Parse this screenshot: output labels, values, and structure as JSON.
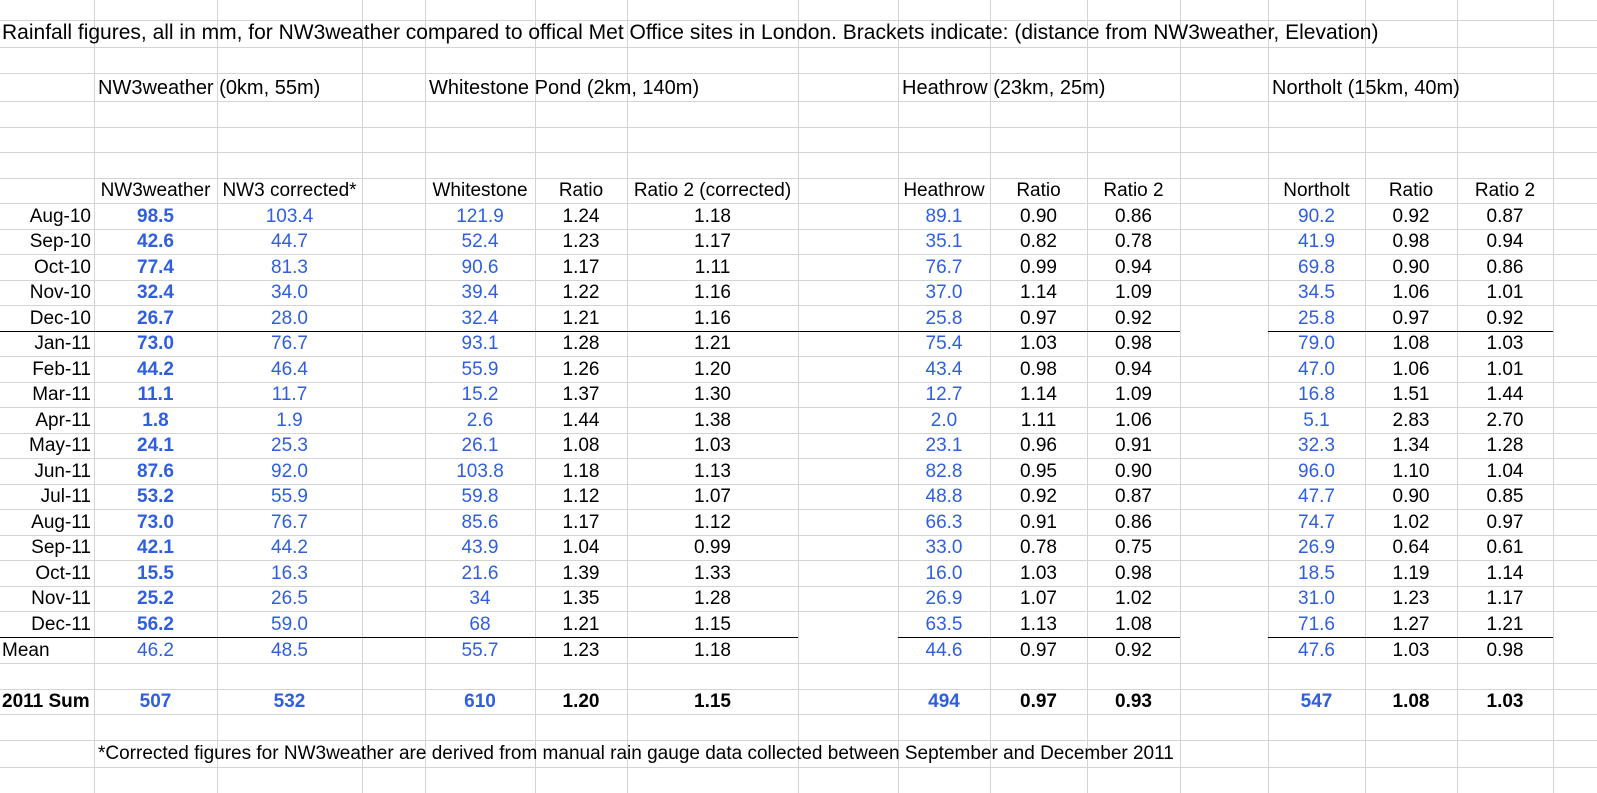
{
  "title": "Rainfall figures, all in mm, for NW3weather compared to offical Met Office sites in London. Brackets indicate: (distance from NW3weather, Elevation)",
  "sections": {
    "nw3": "NW3weather (0km, 55m)",
    "whitestone": "Whitestone Pond (2km, 140m)",
    "heathrow": "Heathrow (23km, 25m)",
    "northolt": "Northolt (15km, 40m)"
  },
  "headers": {
    "nw3": "NW3weather",
    "nw3c": "NW3 corrected*",
    "ws": "Whitestone",
    "ws_r1": "Ratio",
    "ws_r2": "Ratio 2 (corrected)",
    "hr": "Heathrow",
    "hr_r1": "Ratio",
    "hr_r2": "Ratio 2",
    "no": "Northolt",
    "no_r1": "Ratio",
    "no_r2": "Ratio 2"
  },
  "rows": [
    {
      "label": "Aug-10",
      "nw3": "98.5",
      "nw3c": "103.4",
      "ws": "121.9",
      "ws_r1": "1.24",
      "ws_r2": "1.18",
      "hr": "89.1",
      "hr_r1": "0.90",
      "hr_r2": "0.86",
      "no": "90.2",
      "no_r1": "0.92",
      "no_r2": "0.87"
    },
    {
      "label": "Sep-10",
      "nw3": "42.6",
      "nw3c": "44.7",
      "ws": "52.4",
      "ws_r1": "1.23",
      "ws_r2": "1.17",
      "hr": "35.1",
      "hr_r1": "0.82",
      "hr_r2": "0.78",
      "no": "41.9",
      "no_r1": "0.98",
      "no_r2": "0.94"
    },
    {
      "label": "Oct-10",
      "nw3": "77.4",
      "nw3c": "81.3",
      "ws": "90.6",
      "ws_r1": "1.17",
      "ws_r2": "1.11",
      "hr": "76.7",
      "hr_r1": "0.99",
      "hr_r2": "0.94",
      "no": "69.8",
      "no_r1": "0.90",
      "no_r2": "0.86"
    },
    {
      "label": "Nov-10",
      "nw3": "32.4",
      "nw3c": "34.0",
      "ws": "39.4",
      "ws_r1": "1.22",
      "ws_r2": "1.16",
      "hr": "37.0",
      "hr_r1": "1.14",
      "hr_r2": "1.09",
      "no": "34.5",
      "no_r1": "1.06",
      "no_r2": "1.01"
    },
    {
      "label": "Dec-10",
      "nw3": "26.7",
      "nw3c": "28.0",
      "ws": "32.4",
      "ws_r1": "1.21",
      "ws_r2": "1.16",
      "hr": "25.8",
      "hr_r1": "0.97",
      "hr_r2": "0.92",
      "no": "25.8",
      "no_r1": "0.97",
      "no_r2": "0.92"
    },
    {
      "label": "Jan-11",
      "nw3": "73.0",
      "nw3c": "76.7",
      "ws": "93.1",
      "ws_r1": "1.28",
      "ws_r2": "1.21",
      "hr": "75.4",
      "hr_r1": "1.03",
      "hr_r2": "0.98",
      "no": "79.0",
      "no_r1": "1.08",
      "no_r2": "1.03"
    },
    {
      "label": "Feb-11",
      "nw3": "44.2",
      "nw3c": "46.4",
      "ws": "55.9",
      "ws_r1": "1.26",
      "ws_r2": "1.20",
      "hr": "43.4",
      "hr_r1": "0.98",
      "hr_r2": "0.94",
      "no": "47.0",
      "no_r1": "1.06",
      "no_r2": "1.01"
    },
    {
      "label": "Mar-11",
      "nw3": "11.1",
      "nw3c": "11.7",
      "ws": "15.2",
      "ws_r1": "1.37",
      "ws_r2": "1.30",
      "hr": "12.7",
      "hr_r1": "1.14",
      "hr_r2": "1.09",
      "no": "16.8",
      "no_r1": "1.51",
      "no_r2": "1.44"
    },
    {
      "label": "Apr-11",
      "nw3": "1.8",
      "nw3c": "1.9",
      "ws": "2.6",
      "ws_r1": "1.44",
      "ws_r2": "1.38",
      "hr": "2.0",
      "hr_r1": "1.11",
      "hr_r2": "1.06",
      "no": "5.1",
      "no_r1": "2.83",
      "no_r2": "2.70"
    },
    {
      "label": "May-11",
      "nw3": "24.1",
      "nw3c": "25.3",
      "ws": "26.1",
      "ws_r1": "1.08",
      "ws_r2": "1.03",
      "hr": "23.1",
      "hr_r1": "0.96",
      "hr_r2": "0.91",
      "no": "32.3",
      "no_r1": "1.34",
      "no_r2": "1.28"
    },
    {
      "label": "Jun-11",
      "nw3": "87.6",
      "nw3c": "92.0",
      "ws": "103.8",
      "ws_r1": "1.18",
      "ws_r2": "1.13",
      "hr": "82.8",
      "hr_r1": "0.95",
      "hr_r2": "0.90",
      "no": "96.0",
      "no_r1": "1.10",
      "no_r2": "1.04"
    },
    {
      "label": "Jul-11",
      "nw3": "53.2",
      "nw3c": "55.9",
      "ws": "59.8",
      "ws_r1": "1.12",
      "ws_r2": "1.07",
      "hr": "48.8",
      "hr_r1": "0.92",
      "hr_r2": "0.87",
      "no": "47.7",
      "no_r1": "0.90",
      "no_r2": "0.85"
    },
    {
      "label": "Aug-11",
      "nw3": "73.0",
      "nw3c": "76.7",
      "ws": "85.6",
      "ws_r1": "1.17",
      "ws_r2": "1.12",
      "hr": "66.3",
      "hr_r1": "0.91",
      "hr_r2": "0.86",
      "no": "74.7",
      "no_r1": "1.02",
      "no_r2": "0.97"
    },
    {
      "label": "Sep-11",
      "nw3": "42.1",
      "nw3c": "44.2",
      "ws": "43.9",
      "ws_r1": "1.04",
      "ws_r2": "0.99",
      "hr": "33.0",
      "hr_r1": "0.78",
      "hr_r2": "0.75",
      "no": "26.9",
      "no_r1": "0.64",
      "no_r2": "0.61"
    },
    {
      "label": "Oct-11",
      "nw3": "15.5",
      "nw3c": "16.3",
      "ws": "21.6",
      "ws_r1": "1.39",
      "ws_r2": "1.33",
      "hr": "16.0",
      "hr_r1": "1.03",
      "hr_r2": "0.98",
      "no": "18.5",
      "no_r1": "1.19",
      "no_r2": "1.14"
    },
    {
      "label": "Nov-11",
      "nw3": "25.2",
      "nw3c": "26.5",
      "ws": "34",
      "ws_r1": "1.35",
      "ws_r2": "1.28",
      "hr": "26.9",
      "hr_r1": "1.07",
      "hr_r2": "1.02",
      "no": "31.0",
      "no_r1": "1.23",
      "no_r2": "1.17"
    },
    {
      "label": "Dec-11",
      "nw3": "56.2",
      "nw3c": "59.0",
      "ws": "68",
      "ws_r1": "1.21",
      "ws_r2": "1.15",
      "hr": "63.5",
      "hr_r1": "1.13",
      "hr_r2": "1.08",
      "no": "71.6",
      "no_r1": "1.27",
      "no_r2": "1.21"
    }
  ],
  "mean": {
    "label": "Mean",
    "nw3": "46.2",
    "nw3c": "48.5",
    "ws": "55.7",
    "ws_r1": "1.23",
    "ws_r2": "1.18",
    "hr": "44.6",
    "hr_r1": "0.97",
    "hr_r2": "0.92",
    "no": "47.6",
    "no_r1": "1.03",
    "no_r2": "0.98"
  },
  "sum": {
    "label": "2011 Sum",
    "nw3": "507",
    "nw3c": "532",
    "ws": "610",
    "ws_r1": "1.20",
    "ws_r2": "1.15",
    "hr": "494",
    "hr_r1": "0.97",
    "hr_r2": "0.93",
    "no": "547",
    "no_r1": "1.08",
    "no_r2": "1.03"
  },
  "footnote": "*Corrected figures for NW3weather are derived from manual rain gauge data collected between September and December 2011",
  "colors": {
    "value_blue": "#2f5fe0",
    "gridline": "#d4d4d4"
  }
}
